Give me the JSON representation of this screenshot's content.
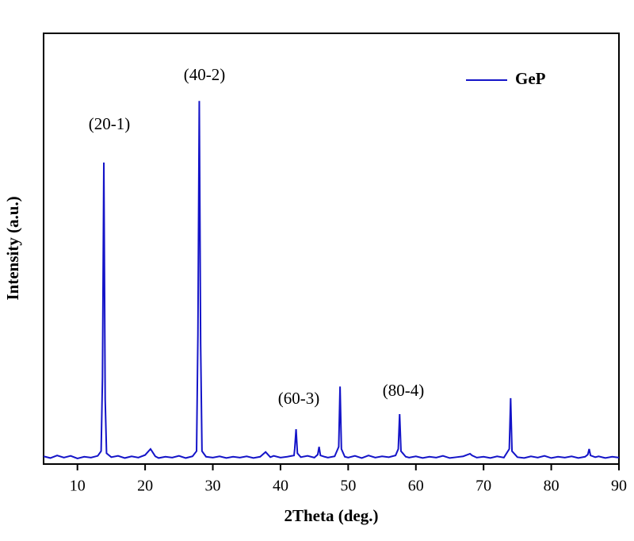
{
  "chart_data": {
    "type": "line",
    "x_label": "2Theta (deg.)",
    "y_label": "Intensity (a.u.)",
    "xlim": [
      5,
      90
    ],
    "xticks": [
      10,
      20,
      30,
      40,
      50,
      60,
      70,
      80,
      90
    ],
    "ylim": [
      0,
      100
    ],
    "legend": "top-right",
    "annotations": [
      "(20-1)",
      "(40-2)",
      "(60-3)",
      "(80-4)"
    ],
    "x": [
      5,
      6,
      7,
      8,
      9,
      10,
      11,
      12,
      13,
      13.5,
      13.7,
      13.9,
      14.1,
      14.3,
      15,
      16,
      17,
      18,
      19,
      20,
      20.8,
      21.5,
      22,
      23,
      24,
      25,
      26,
      27,
      27.6,
      27.8,
      28.0,
      28.2,
      28.4,
      29,
      30,
      31,
      32,
      33,
      34,
      35,
      36,
      37,
      37.8,
      38.5,
      39,
      40,
      41,
      42,
      42.1,
      42.3,
      42.5,
      43,
      44,
      45,
      45.5,
      45.7,
      45.9,
      46.5,
      47,
      48,
      48.6,
      48.8,
      49.0,
      49.5,
      50,
      51,
      52,
      53,
      54,
      55,
      56,
      57,
      57.4,
      57.6,
      57.8,
      58.5,
      59,
      60,
      61,
      62,
      63,
      64,
      65,
      66,
      67,
      68,
      68.3,
      69,
      70,
      71,
      72,
      73,
      73.8,
      74.0,
      74.2,
      75,
      76,
      77,
      78,
      79,
      80,
      81,
      82,
      83,
      84,
      85,
      85.4,
      85.6,
      85.8,
      86.5,
      87,
      88,
      89,
      90
    ],
    "series": [
      {
        "name": "GeP",
        "color": "#1414c8",
        "values": [
          1.8,
          1.4,
          2.0,
          1.5,
          1.9,
          1.3,
          1.7,
          1.5,
          1.9,
          3,
          20,
          70,
          15,
          2.5,
          1.6,
          1.9,
          1.4,
          1.8,
          1.5,
          2.1,
          3.5,
          1.8,
          1.4,
          1.7,
          1.5,
          1.9,
          1.4,
          1.8,
          3,
          30,
          84.3,
          28,
          3,
          1.7,
          1.5,
          1.8,
          1.4,
          1.7,
          1.5,
          1.8,
          1.4,
          1.7,
          2.8,
          1.6,
          1.9,
          1.5,
          1.7,
          2.0,
          3.5,
          8.1,
          2.5,
          1.6,
          1.9,
          1.5,
          2.2,
          4,
          2,
          1.7,
          1.5,
          1.8,
          4,
          18,
          3.5,
          1.7,
          1.5,
          1.9,
          1.4,
          2.0,
          1.5,
          1.8,
          1.6,
          2.0,
          3.5,
          11.6,
          3,
          1.7,
          1.5,
          1.8,
          1.4,
          1.7,
          1.5,
          1.9,
          1.4,
          1.6,
          1.8,
          2.4,
          2.0,
          1.5,
          1.7,
          1.4,
          1.8,
          1.5,
          3.5,
          15.3,
          3,
          1.6,
          1.4,
          1.8,
          1.5,
          1.9,
          1.4,
          1.7,
          1.5,
          1.8,
          1.4,
          1.7,
          2.2,
          3.5,
          2,
          1.6,
          1.8,
          1.4,
          1.7,
          1.5
        ]
      }
    ]
  }
}
